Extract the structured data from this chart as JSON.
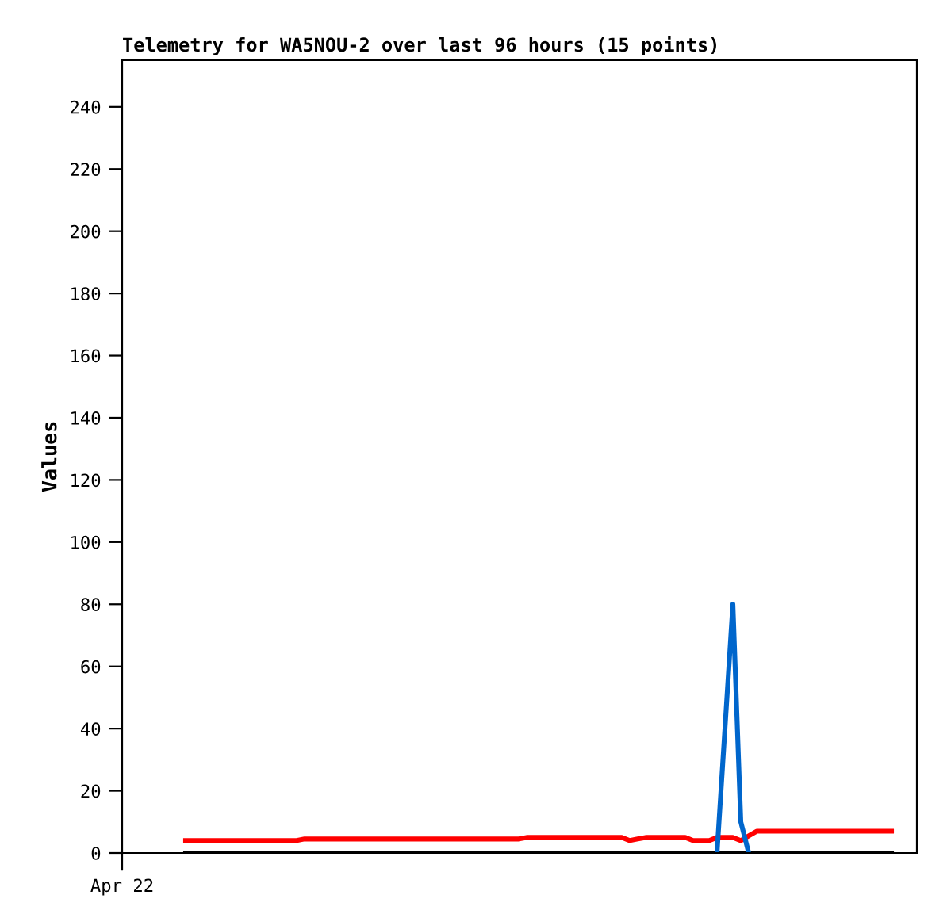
{
  "chart_data": {
    "type": "line",
    "title": "Telemetry for WA5NOU-2 over last 96 hours (15 points)",
    "ylabel": "Values",
    "categories": [
      "Apr 22",
      null,
      null,
      null,
      null,
      null,
      null,
      null,
      null,
      null,
      null,
      null,
      null,
      null,
      null,
      null,
      null,
      null,
      null,
      null,
      null,
      null,
      null,
      null,
      null,
      null,
      null,
      null,
      null,
      null,
      null,
      null,
      null,
      null,
      null,
      null,
      null,
      null,
      null,
      null,
      null,
      null,
      null,
      null,
      null,
      null,
      null,
      null,
      null,
      null,
      null,
      null,
      null,
      null,
      null,
      null,
      null,
      null,
      null,
      null,
      null,
      null,
      null,
      null,
      null,
      null,
      null,
      null,
      null,
      null,
      null,
      null,
      null,
      null,
      null,
      null,
      null,
      null,
      null,
      null,
      null,
      null,
      null,
      null,
      null,
      null,
      null,
      null,
      null,
      null,
      null,
      null,
      null,
      null,
      null,
      null,
      null,
      null,
      null,
      null,
      null
    ],
    "series": [
      {
        "color": "#000000",
        "values": [
          null,
          null,
          null,
          null,
          null,
          null,
          null,
          null,
          0,
          0,
          0,
          0,
          0,
          0,
          0,
          0,
          0,
          0,
          0,
          0,
          0,
          0,
          0,
          0,
          0,
          0,
          0,
          0,
          0,
          0,
          0,
          0,
          0,
          0,
          0,
          0,
          0,
          0,
          0,
          0,
          0,
          0,
          0,
          0,
          0,
          0,
          0,
          0,
          0,
          0,
          0,
          0,
          0,
          0,
          0,
          0,
          0,
          0,
          0,
          0,
          0,
          0,
          0,
          0,
          0,
          0,
          0,
          0,
          0,
          0,
          0,
          0,
          0,
          0,
          0,
          0,
          0,
          0,
          0,
          0,
          0,
          0,
          0,
          0,
          0,
          0,
          0,
          0,
          0,
          0,
          0,
          0,
          0,
          0,
          0,
          0,
          0,
          0,
          null,
          null,
          null
        ]
      },
      {
        "color": "#ff0000",
        "values": [
          null,
          null,
          null,
          null,
          null,
          null,
          null,
          null,
          4,
          4,
          4,
          4,
          4,
          4,
          4,
          4,
          4,
          4,
          4,
          4,
          4,
          4,
          4,
          4.5,
          4.5,
          4.5,
          4.5,
          4.5,
          4.5,
          4.5,
          4.5,
          4.5,
          4.5,
          4.5,
          4.5,
          4.5,
          4.5,
          4.5,
          4.5,
          4.5,
          4.5,
          4.5,
          4.5,
          4.5,
          4.5,
          4.5,
          4.5,
          4.5,
          4.5,
          4.5,
          4.5,
          5,
          5,
          5,
          5,
          5,
          5,
          5,
          5,
          5,
          5,
          5,
          5,
          5,
          4,
          4.5,
          5,
          5,
          5,
          5,
          5,
          5,
          4,
          4,
          4,
          5,
          5,
          5,
          4,
          5.5,
          7,
          7,
          7,
          7,
          7,
          7,
          7,
          7,
          7,
          7,
          7,
          7,
          7,
          7,
          7,
          7,
          7,
          7,
          null,
          null,
          null
        ]
      },
      {
        "color": "#0066cc",
        "values": [
          null,
          null,
          null,
          null,
          null,
          null,
          null,
          null,
          null,
          null,
          null,
          null,
          null,
          null,
          null,
          null,
          null,
          null,
          null,
          null,
          null,
          null,
          null,
          null,
          null,
          null,
          null,
          null,
          null,
          null,
          null,
          null,
          null,
          null,
          null,
          null,
          null,
          null,
          null,
          null,
          null,
          null,
          null,
          null,
          null,
          null,
          null,
          null,
          null,
          null,
          null,
          null,
          null,
          null,
          null,
          null,
          null,
          null,
          null,
          null,
          null,
          null,
          null,
          null,
          null,
          null,
          null,
          null,
          null,
          null,
          null,
          null,
          null,
          null,
          null,
          0,
          40,
          80,
          10,
          0,
          null,
          null,
          null,
          null,
          null,
          null,
          null,
          null,
          null,
          null,
          null,
          null,
          null,
          null,
          null,
          null,
          null,
          null,
          null,
          null,
          null
        ]
      }
    ],
    "ylim": [
      0,
      255
    ],
    "yticks": [
      0,
      20,
      40,
      60,
      80,
      100,
      120,
      140,
      160,
      180,
      200,
      220,
      240
    ],
    "grid": false,
    "legend": false,
    "marker": "none",
    "line_style": "solid"
  }
}
